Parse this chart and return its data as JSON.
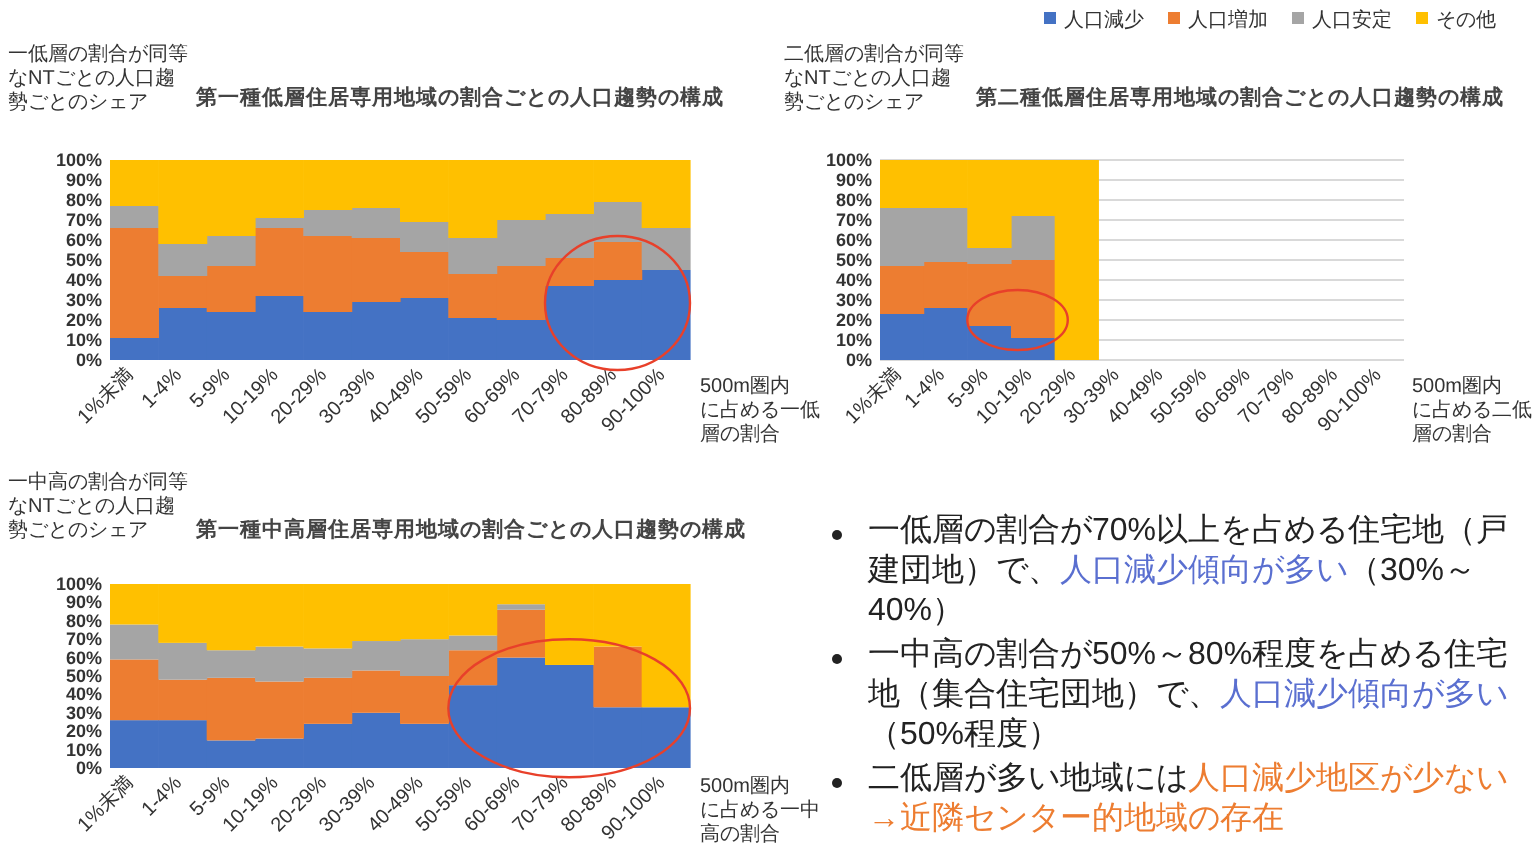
{
  "chart_data": [
    {
      "type": "bar",
      "stacked": true,
      "title": "第一種低層住居専用地域の割合ごとの人口趨勢の構成",
      "ylabel": "一低層の割合が同等なNTごとの人口趨勢ごとのシェア",
      "xlabel": "500m圏内に占める一低層の割合",
      "categories": [
        "1%未満",
        "1-4%",
        "5-9%",
        "10-19%",
        "20-29%",
        "30-39%",
        "40-49%",
        "50-59%",
        "60-69%",
        "70-79%",
        "80-89%",
        "90-100%"
      ],
      "ylim": [
        0,
        100
      ],
      "yticks": [
        {
          "value": 0,
          "label": "0%"
        },
        {
          "value": 10,
          "label": "10%"
        },
        {
          "value": 20,
          "label": "20%"
        },
        {
          "value": 30,
          "label": "30%"
        },
        {
          "value": 40,
          "label": "40%"
        },
        {
          "value": 50,
          "label": "50%"
        },
        {
          "value": 60,
          "label": "60%"
        },
        {
          "value": 70,
          "label": "70%"
        },
        {
          "value": 80,
          "label": "80%"
        },
        {
          "value": 90,
          "label": "90%"
        },
        {
          "value": 100,
          "label": "100%"
        }
      ],
      "series": [
        {
          "color": "#4472c4",
          "values": [
            11,
            26,
            24,
            32,
            24,
            29,
            31,
            21,
            20,
            37,
            40,
            45
          ]
        },
        {
          "color": "#ed7d31",
          "values": [
            55,
            16,
            23,
            34,
            38,
            32,
            23,
            22,
            27,
            14,
            19,
            0
          ]
        },
        {
          "color": "#a5a5a5",
          "values": [
            11,
            16,
            15,
            5,
            13,
            15,
            15,
            18,
            23,
            22,
            20,
            21
          ]
        },
        {
          "color": "#ffc000",
          "values": [
            23,
            42,
            38,
            29,
            25,
            24,
            31,
            39,
            30,
            27,
            21,
            34
          ]
        }
      ]
    },
    {
      "type": "bar",
      "stacked": true,
      "title": "第二種低層住居専用地域の割合ごとの人口趨勢の構成",
      "ylabel": "二低層の割合が同等なNTごとの人口趨勢ごとのシェア",
      "xlabel": "500m圏内に占める二低層の割合",
      "categories": [
        "1%未満",
        "1-4%",
        "5-9%",
        "10-19%",
        "20-29%",
        "30-39%",
        "40-49%",
        "50-59%",
        "60-69%",
        "70-79%",
        "80-89%",
        "90-100%"
      ],
      "ylim": [
        0,
        100
      ],
      "yticks": [
        {
          "value": 0,
          "label": "0%"
        },
        {
          "value": 10,
          "label": "10%"
        },
        {
          "value": 20,
          "label": "20%"
        },
        {
          "value": 30,
          "label": "30%"
        },
        {
          "value": 40,
          "label": "40%"
        },
        {
          "value": 50,
          "label": "50%"
        },
        {
          "value": 60,
          "label": "60%"
        },
        {
          "value": 70,
          "label": "70%"
        },
        {
          "value": 80,
          "label": "80%"
        },
        {
          "value": 90,
          "label": "90%"
        },
        {
          "value": 100,
          "label": "100%"
        }
      ],
      "grid": "y",
      "legend": "top right",
      "series": [
        {
          "name": "人口減少",
          "color": "#4472c4",
          "values": [
            23,
            26,
            17,
            11,
            0,
            null,
            null,
            null,
            null,
            null,
            null,
            null
          ]
        },
        {
          "name": "人口増加",
          "color": "#ed7d31",
          "values": [
            24,
            23,
            31,
            39,
            0,
            null,
            null,
            null,
            null,
            null,
            null,
            null
          ]
        },
        {
          "name": "人口安定",
          "color": "#a5a5a5",
          "values": [
            29,
            27,
            8,
            22,
            0,
            null,
            null,
            null,
            null,
            null,
            null,
            null
          ]
        },
        {
          "name": "その他",
          "color": "#ffc000",
          "values": [
            24,
            24,
            44,
            28,
            100,
            null,
            null,
            null,
            null,
            null,
            null,
            null
          ]
        }
      ]
    },
    {
      "type": "bar",
      "stacked": true,
      "title": "第一種中高層住居専用地域の割合ごとの人口趨勢の構成",
      "ylabel": "一中高の割合が同等なNTごとの人口趨勢ごとのシェア",
      "xlabel": "500m圏内に占める一中高の割合",
      "categories": [
        "1%未満",
        "1-4%",
        "5-9%",
        "10-19%",
        "20-29%",
        "30-39%",
        "40-49%",
        "50-59%",
        "60-69%",
        "70-79%",
        "80-89%",
        "90-100%"
      ],
      "ylim": [
        0,
        100
      ],
      "yticks": [
        {
          "value": 0,
          "label": "0%"
        },
        {
          "value": 10,
          "label": "10%"
        },
        {
          "value": 20,
          "label": "20%"
        },
        {
          "value": 30,
          "label": "30%"
        },
        {
          "value": 40,
          "label": "40%"
        },
        {
          "value": 50,
          "label": "50%"
        },
        {
          "value": 60,
          "label": "60%"
        },
        {
          "value": 70,
          "label": "70%"
        },
        {
          "value": 80,
          "label": "80%"
        },
        {
          "value": 90,
          "label": "90%"
        },
        {
          "value": 100,
          "label": "100%"
        }
      ],
      "series": [
        {
          "color": "#4472c4",
          "values": [
            26,
            26,
            15,
            16,
            24,
            30,
            24,
            45,
            60,
            56,
            33,
            33
          ]
        },
        {
          "color": "#ed7d31",
          "values": [
            33,
            22,
            34,
            31,
            25,
            23,
            26,
            19,
            26,
            0,
            33,
            0
          ]
        },
        {
          "color": "#a5a5a5",
          "values": [
            19,
            20,
            15,
            19,
            16,
            16,
            20,
            8,
            3,
            0,
            0,
            0
          ]
        },
        {
          "color": "#ffc000",
          "values": [
            22,
            32,
            36,
            34,
            35,
            31,
            30,
            28,
            11,
            44,
            34,
            67
          ]
        }
      ]
    },
    {
      "type": "other",
      "annotations": [
        "一低層の割合が70%以上を占める住宅地（戸建団地）で、",
        "人口減少傾向が多い",
        "（30%～40%）"
      ],
      "colors": [
        "#222222",
        "#5a6fd0",
        "#222222"
      ]
    },
    {
      "type": "other",
      "annotations": [
        "一中高の割合が50%～80%程度を占める住宅地（集合住宅団地）で、",
        "人口減少傾向が多い",
        "（50%程度）"
      ],
      "colors": [
        "#222222",
        "#5a6fd0",
        "#222222"
      ]
    },
    {
      "type": "other",
      "annotations": [
        "二低層が多い地域には",
        "人口減少地区が少ない→近隣センター的地域の存在"
      ],
      "colors": [
        "#222222",
        "#ed7d31"
      ]
    }
  ]
}
